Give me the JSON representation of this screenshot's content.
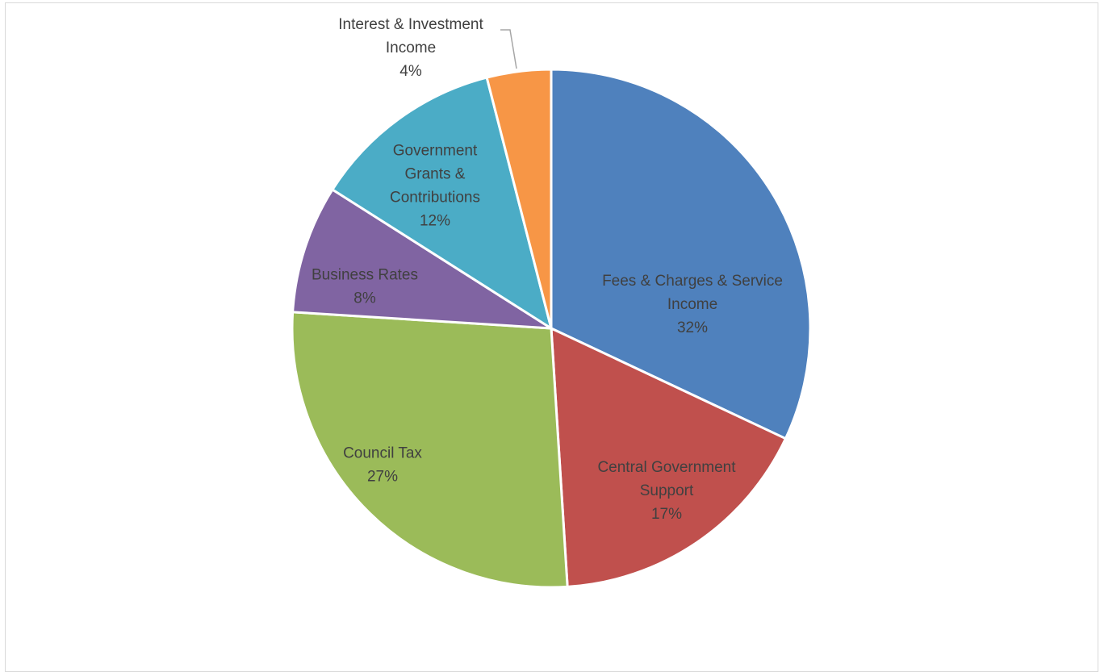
{
  "chart_data": {
    "type": "pie",
    "title": "",
    "slices": [
      {
        "label": "Fees & Charges & Service Income",
        "label_lines": [
          "Fees & Charges & Service",
          "Income"
        ],
        "value": 32,
        "value_label": "32%",
        "color": "#4f81bd"
      },
      {
        "label": "Central Government Support",
        "label_lines": [
          "Central Government",
          "Support"
        ],
        "value": 17,
        "value_label": "17%",
        "color": "#c0504d"
      },
      {
        "label": "Council Tax",
        "label_lines": [
          "Council Tax"
        ],
        "value": 27,
        "value_label": "27%",
        "color": "#9bbb59"
      },
      {
        "label": "Business Rates",
        "label_lines": [
          "Business Rates"
        ],
        "value": 8,
        "value_label": "8%",
        "color": "#8064a2"
      },
      {
        "label": "Government Grants & Contributions",
        "label_lines": [
          "Government",
          "Grants &",
          "Contributions"
        ],
        "value": 12,
        "value_label": "12%",
        "color": "#4bacc6"
      },
      {
        "label": "Interest & Investment Income",
        "label_lines": [
          "Interest & Investment",
          "Income"
        ],
        "value": 4,
        "value_label": "4%",
        "color": "#f79646"
      }
    ],
    "start_angle_deg": 0,
    "direction": "clockwise",
    "legend": "none",
    "data_labels": "category and percentage"
  }
}
